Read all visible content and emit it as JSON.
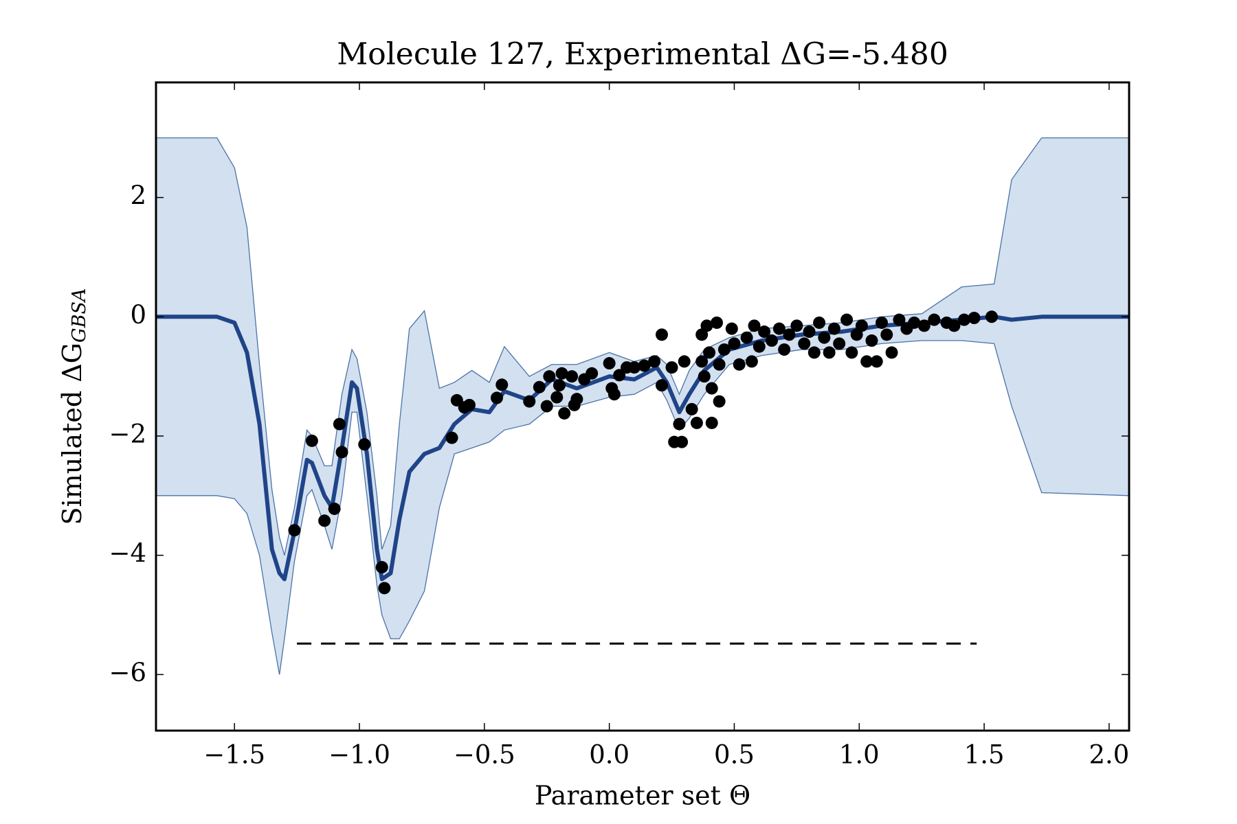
{
  "chart_data": {
    "type": "line",
    "title": "Molecule 127, Experimental ΔG=-5.480",
    "xlabel": "Parameter set Θ",
    "ylabel": "Simulated ΔG",
    "ylabel_subscript": "GBSA",
    "xlim": [
      -1.814,
      2.08
    ],
    "ylim": [
      -6.94,
      3.93
    ],
    "xticks": [
      {
        "value": -1.5,
        "label": "−1.5"
      },
      {
        "value": -1.0,
        "label": "−1.0"
      },
      {
        "value": -0.5,
        "label": "−0.5"
      },
      {
        "value": 0.0,
        "label": "0.0"
      },
      {
        "value": 0.5,
        "label": "0.5"
      },
      {
        "value": 1.0,
        "label": "1.0"
      },
      {
        "value": 1.5,
        "label": "1.5"
      },
      {
        "value": 2.0,
        "label": "2.0"
      }
    ],
    "yticks": [
      {
        "value": -6,
        "label": "−6"
      },
      {
        "value": -4,
        "label": "−4"
      },
      {
        "value": -2,
        "label": "−2"
      },
      0,
      2
    ],
    "x": [
      -1.814,
      -1.57,
      -1.5,
      -1.45,
      -1.4,
      -1.35,
      -1.32,
      -1.3,
      -1.26,
      -1.21,
      -1.19,
      -1.14,
      -1.11,
      -1.07,
      -1.03,
      -1.01,
      -0.97,
      -0.93,
      -0.91,
      -0.875,
      -0.84,
      -0.8,
      -0.74,
      -0.68,
      -0.62,
      -0.55,
      -0.48,
      -0.42,
      -0.32,
      -0.23,
      -0.13,
      0.0,
      0.1,
      0.19,
      0.23,
      0.28,
      0.32,
      0.38,
      0.48,
      0.61,
      0.77,
      0.93,
      1.09,
      1.25,
      1.41,
      1.54,
      1.61,
      1.73,
      2.08
    ],
    "mean": [
      0,
      0,
      -0.1,
      -0.6,
      -1.8,
      -3.9,
      -4.3,
      -4.4,
      -3.6,
      -2.4,
      -2.45,
      -3.0,
      -3.2,
      -2.2,
      -1.1,
      -1.2,
      -2.3,
      -3.9,
      -4.4,
      -4.3,
      -3.4,
      -2.6,
      -2.3,
      -2.2,
      -1.8,
      -1.55,
      -1.6,
      -1.25,
      -1.4,
      -1.05,
      -1.2,
      -1.0,
      -1.05,
      -0.85,
      -1.1,
      -1.6,
      -1.3,
      -0.9,
      -0.55,
      -0.4,
      -0.3,
      -0.25,
      -0.15,
      -0.1,
      -0.05,
      0.0,
      -0.05,
      0.0,
      0
    ],
    "upper": [
      3.0,
      3.0,
      2.5,
      1.5,
      -0.8,
      -2.9,
      -3.7,
      -4.0,
      -3.2,
      -1.9,
      -2.0,
      -2.5,
      -2.5,
      -1.3,
      -0.55,
      -0.7,
      -1.6,
      -3.0,
      -3.9,
      -3.5,
      -1.8,
      -0.2,
      0.1,
      -1.2,
      -1.1,
      -0.9,
      -1.1,
      -0.5,
      -1.0,
      -0.8,
      -0.8,
      -0.6,
      -0.75,
      -0.65,
      -0.8,
      -1.3,
      -0.9,
      -0.55,
      -0.35,
      -0.2,
      -0.15,
      -0.1,
      0.0,
      0.05,
      0.5,
      0.55,
      2.3,
      3.0,
      3.0
    ],
    "lower": [
      -3.0,
      -3.0,
      -3.05,
      -3.3,
      -4.0,
      -5.3,
      -6.0,
      -5.4,
      -4.1,
      -3.0,
      -2.9,
      -3.5,
      -3.9,
      -3.0,
      -1.6,
      -1.6,
      -3.0,
      -4.5,
      -5.0,
      -5.4,
      -5.4,
      -5.1,
      -4.6,
      -3.2,
      -2.3,
      -2.2,
      -2.1,
      -1.9,
      -1.8,
      -1.5,
      -1.5,
      -1.35,
      -1.3,
      -1.1,
      -1.4,
      -1.9,
      -1.7,
      -1.3,
      -0.8,
      -0.65,
      -0.55,
      -0.55,
      -0.45,
      -0.4,
      -0.4,
      -0.45,
      -1.5,
      -2.95,
      -3.0
    ],
    "line_color": "#1f4488",
    "band_color": "#d3e0ef",
    "band_edge_color": "#4a72a8",
    "points": {
      "color": "#000000",
      "x": [
        -1.26,
        -1.19,
        -1.14,
        -1.1,
        -1.08,
        -1.07,
        -0.98,
        -0.91,
        -0.9,
        -0.63,
        -0.61,
        -0.58,
        -0.56,
        -0.45,
        -0.43,
        -0.32,
        -0.28,
        -0.25,
        -0.24,
        -0.21,
        -0.2,
        -0.19,
        -0.18,
        -0.15,
        -0.14,
        -0.13,
        -0.1,
        -0.07,
        0.0,
        0.01,
        0.02,
        0.04,
        0.07,
        0.1,
        0.14,
        0.18,
        0.21,
        0.21,
        0.25,
        0.26,
        0.28,
        0.29,
        0.3,
        0.33,
        0.35,
        0.37,
        0.37,
        0.38,
        0.39,
        0.4,
        0.41,
        0.41,
        0.43,
        0.44,
        0.44,
        0.46,
        0.49,
        0.5,
        0.52,
        0.55,
        0.57,
        0.58,
        0.6,
        0.62,
        0.65,
        0.68,
        0.7,
        0.72,
        0.75,
        0.78,
        0.8,
        0.82,
        0.84,
        0.86,
        0.88,
        0.9,
        0.92,
        0.95,
        0.97,
        0.99,
        1.01,
        1.03,
        1.05,
        1.07,
        1.09,
        1.11,
        1.13,
        1.16,
        1.19,
        1.22,
        1.26,
        1.3,
        1.35,
        1.38,
        1.42,
        1.46,
        1.53
      ],
      "y": [
        -3.58,
        -2.08,
        -3.42,
        -3.22,
        -1.8,
        -2.27,
        -2.14,
        -4.2,
        -4.55,
        -2.03,
        -1.4,
        -1.52,
        -1.48,
        -1.36,
        -1.14,
        -1.42,
        -1.18,
        -1.5,
        -1.0,
        -1.35,
        -1.15,
        -0.95,
        -1.62,
        -1.0,
        -1.48,
        -1.38,
        -1.05,
        -0.95,
        -0.78,
        -1.2,
        -1.3,
        -0.98,
        -0.85,
        -0.85,
        -0.82,
        -0.75,
        -0.3,
        -1.15,
        -0.85,
        -2.1,
        -1.8,
        -2.1,
        -0.75,
        -1.55,
        -1.78,
        -0.3,
        -0.75,
        -1.0,
        -0.15,
        -0.6,
        -1.78,
        -1.2,
        -0.1,
        -1.42,
        -0.8,
        -0.55,
        -0.2,
        -0.45,
        -0.8,
        -0.35,
        -0.75,
        -0.15,
        -0.5,
        -0.25,
        -0.4,
        -0.2,
        -0.55,
        -0.3,
        -0.15,
        -0.45,
        -0.25,
        -0.6,
        -0.1,
        -0.35,
        -0.6,
        -0.2,
        -0.45,
        -0.05,
        -0.6,
        -0.3,
        -0.15,
        -0.75,
        -0.4,
        -0.75,
        -0.1,
        -0.3,
        -0.6,
        -0.05,
        -0.2,
        -0.1,
        -0.15,
        -0.05,
        -0.1,
        -0.15,
        -0.05,
        -0.02,
        0.0
      ]
    },
    "reference": {
      "y": -5.48,
      "xmin": -1.25,
      "xmax": 1.47,
      "color": "#000000"
    }
  }
}
